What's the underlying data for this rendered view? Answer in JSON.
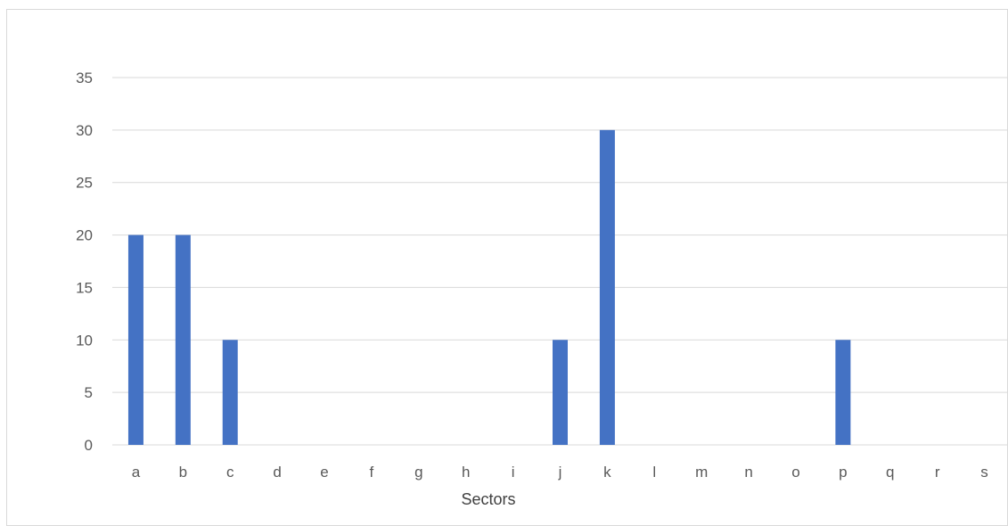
{
  "chart_data": {
    "type": "bar",
    "title": "",
    "xlabel": "Sectors",
    "ylabel": "",
    "categories": [
      "a",
      "b",
      "c",
      "d",
      "e",
      "f",
      "g",
      "h",
      "i",
      "j",
      "k",
      "l",
      "m",
      "n",
      "o",
      "p",
      "q",
      "r",
      "s"
    ],
    "series": [
      {
        "values": [
          20,
          20,
          10,
          0,
          0,
          0,
          0,
          0,
          0,
          10,
          30,
          0,
          0,
          0,
          0,
          10,
          0,
          0,
          0
        ],
        "color": "#4472c4"
      }
    ],
    "ylim": [
      0,
      35
    ],
    "yticks": [
      0,
      5,
      10,
      15,
      20,
      25,
      30,
      35
    ],
    "grid": true,
    "legend": "none",
    "colors": {
      "bar": "#4472c4",
      "grid": "#d9d9d9",
      "tick_text": "#595959"
    }
  }
}
